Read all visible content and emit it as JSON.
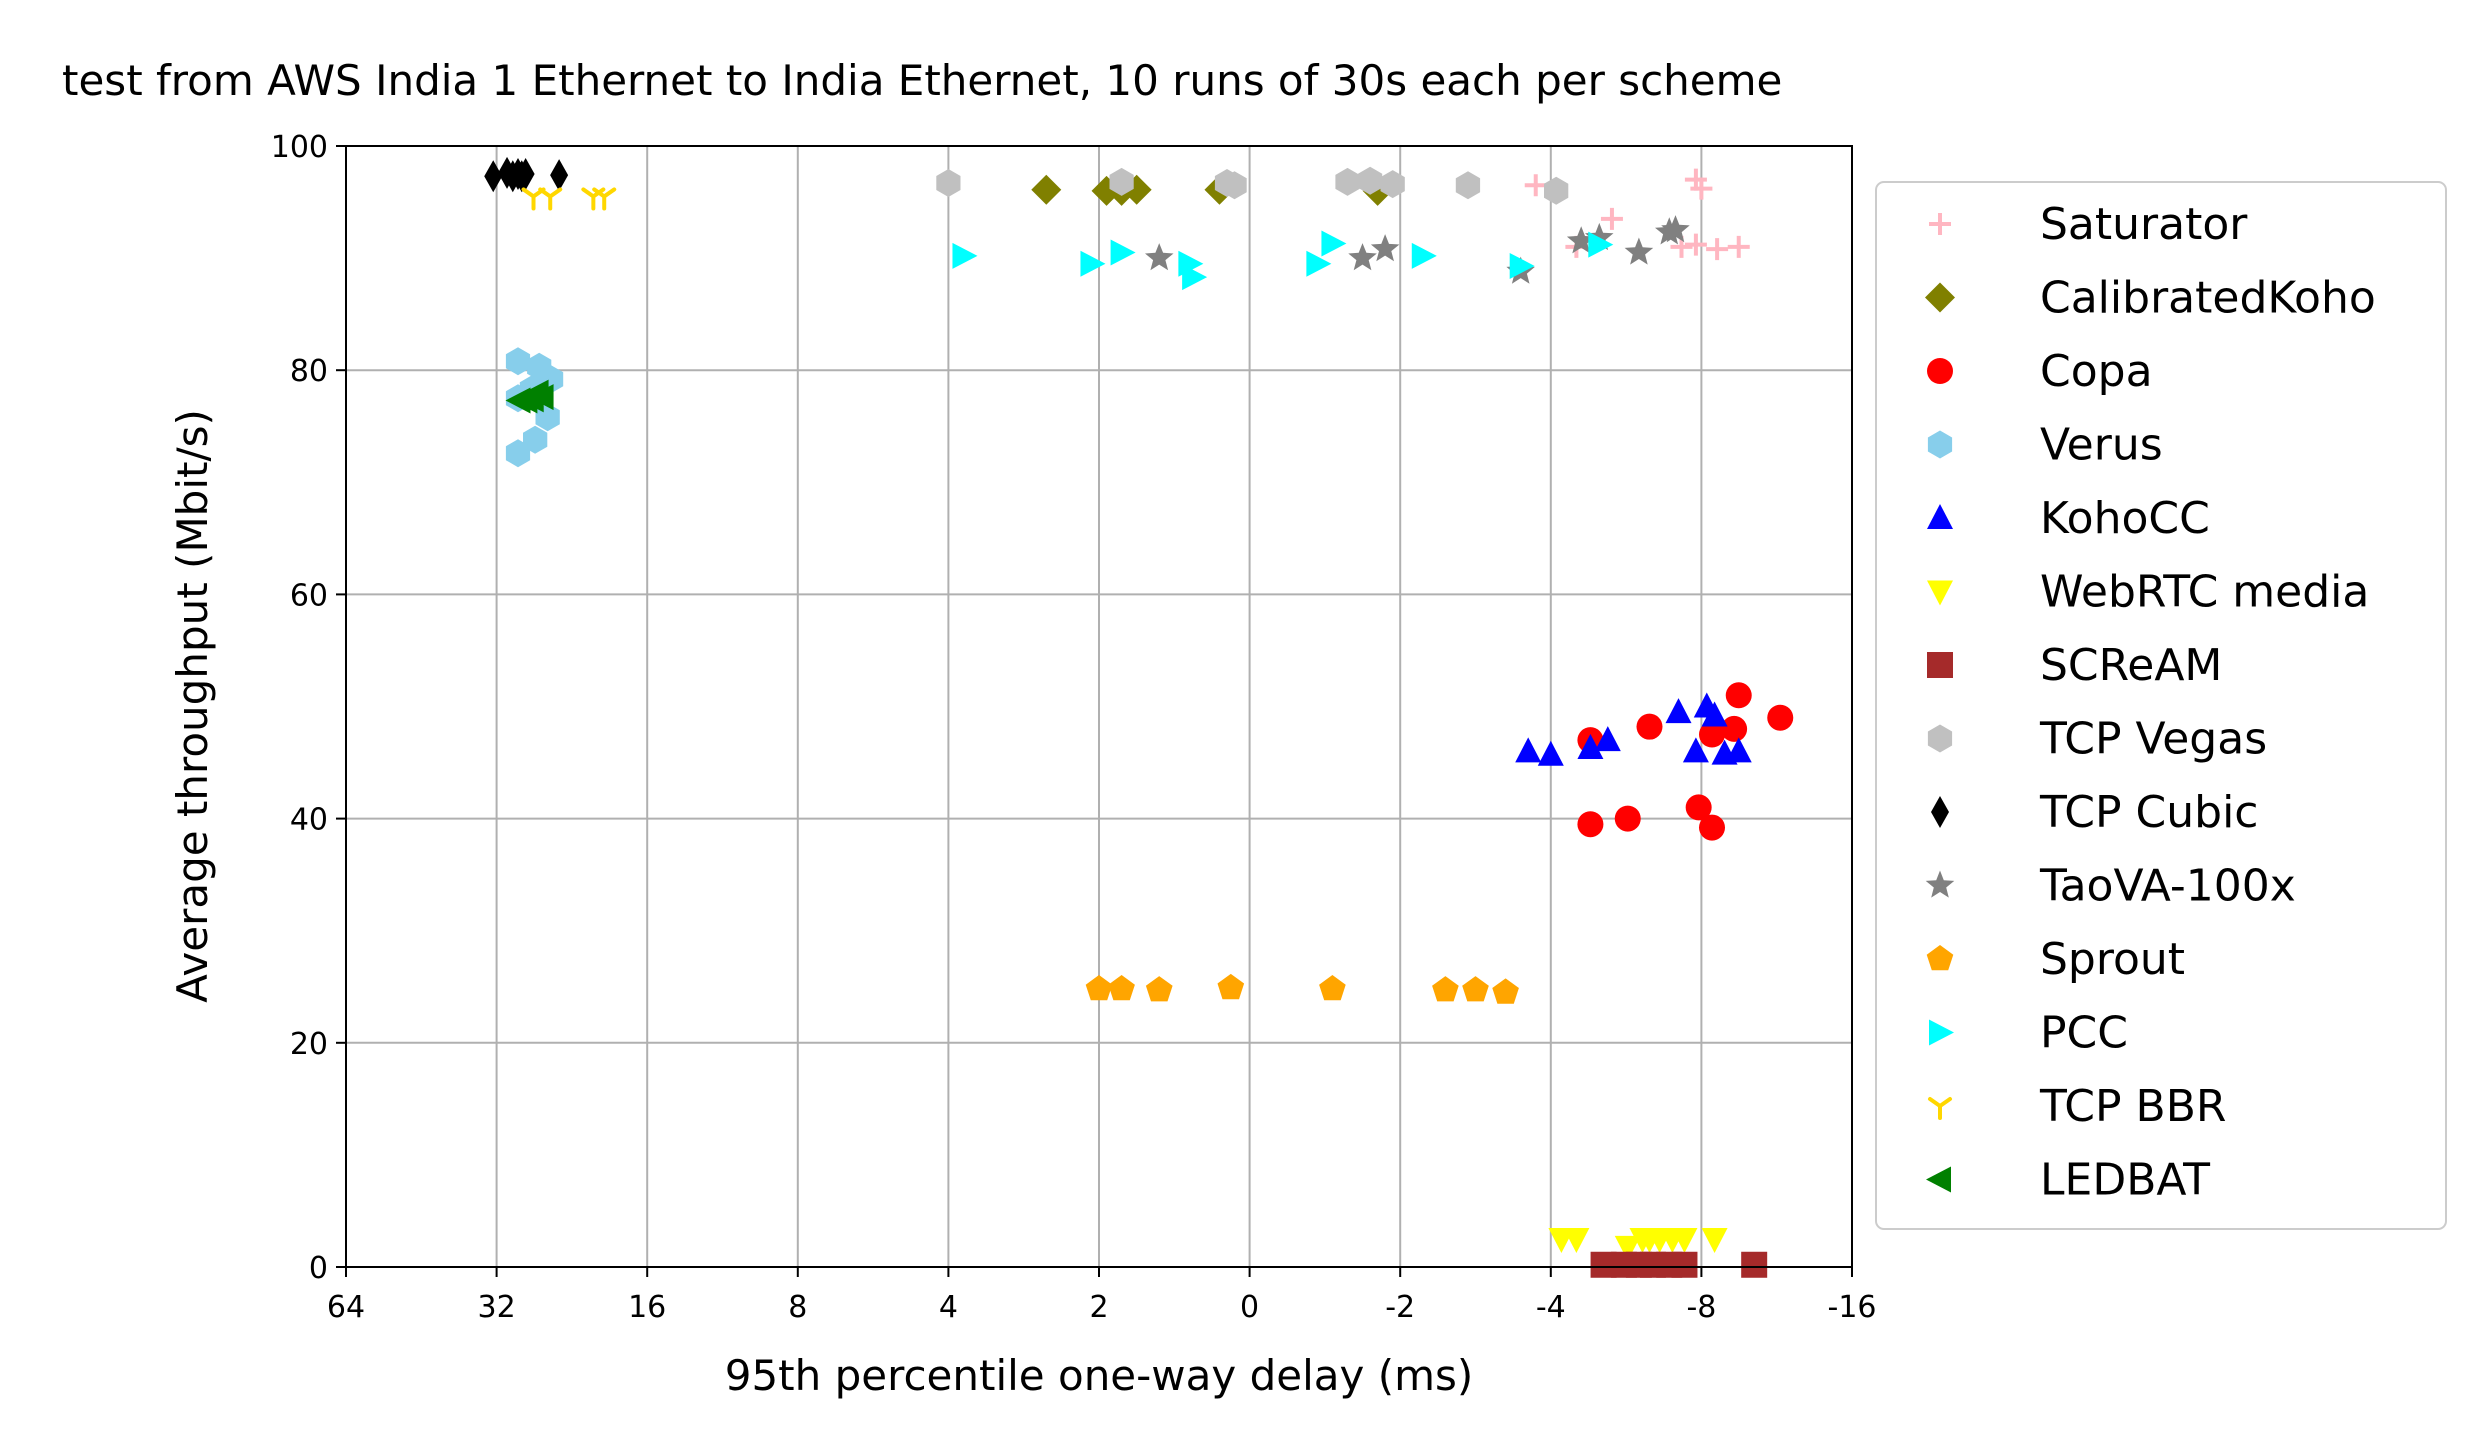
{
  "chart_data": {
    "type": "scatter",
    "title": "test from AWS India 1 Ethernet to India Ethernet, 10 runs of 30s each per scheme",
    "xlabel": "95th percentile one-way delay (ms)",
    "ylabel": "Average throughput (Mbit/s)",
    "x_scale": "symlog (inverted)",
    "x_ticks": [
      64,
      32,
      16,
      8,
      4,
      2,
      0,
      -2,
      -4,
      -8,
      -16
    ],
    "x_tick_labels": [
      "64",
      "32",
      "16",
      "8",
      "4",
      "2",
      "0",
      "-2",
      "-4",
      "-8",
      "-16"
    ],
    "y_ticks": [
      0,
      20,
      40,
      60,
      80,
      100
    ],
    "y_tick_labels": [
      "0",
      "20",
      "40",
      "60",
      "80",
      "100"
    ],
    "ylim": [
      0,
      100
    ],
    "grid": true,
    "legend_position": "right, outside plot",
    "series": [
      {
        "name": "Saturator",
        "marker": "plus",
        "color": "#ffb6c1",
        "points": [
          [
            -3.8,
            96.5
          ],
          [
            -4.5,
            91.0
          ],
          [
            -5.3,
            93.5
          ],
          [
            -7.8,
            97.0
          ],
          [
            -8.0,
            96.2
          ],
          [
            -7.3,
            91.0
          ],
          [
            -7.8,
            91.2
          ],
          [
            -8.6,
            90.8
          ],
          [
            -9.5,
            91.0
          ]
        ]
      },
      {
        "name": "CalibratedKoho",
        "marker": "diamond",
        "color": "#808000",
        "points": [
          [
            2.7,
            96.1
          ],
          [
            1.9,
            96.0
          ],
          [
            1.7,
            96.0
          ],
          [
            1.5,
            96.1
          ],
          [
            0.4,
            96.1
          ],
          [
            -1.7,
            96.0
          ]
        ]
      },
      {
        "name": "Copa",
        "marker": "circle",
        "color": "#ff0000",
        "points": [
          [
            -4.8,
            47.0
          ],
          [
            -6.3,
            48.2
          ],
          [
            -8.4,
            47.5
          ],
          [
            -9.5,
            51.0
          ],
          [
            -9.3,
            48.0
          ],
          [
            -11.5,
            49.0
          ],
          [
            -4.8,
            39.5
          ],
          [
            -5.7,
            40.0
          ],
          [
            -7.9,
            41.0
          ],
          [
            -8.4,
            39.2
          ]
        ]
      },
      {
        "name": "Verus",
        "marker": "hexagon",
        "color": "#87ceeb",
        "points": [
          [
            29.0,
            80.8
          ],
          [
            26.3,
            80.3
          ],
          [
            24.9,
            79.2
          ],
          [
            27.2,
            78.3
          ],
          [
            29.0,
            77.5
          ],
          [
            25.3,
            75.8
          ],
          [
            26.8,
            73.8
          ],
          [
            29.0,
            72.6
          ]
        ]
      },
      {
        "name": "KohoCC",
        "marker": "triangle-up",
        "color": "#0000ff",
        "points": [
          [
            -3.7,
            46.0
          ],
          [
            -4.0,
            45.7
          ],
          [
            -4.8,
            46.3
          ],
          [
            -5.2,
            47.0
          ],
          [
            -7.2,
            49.5
          ],
          [
            -7.8,
            46.0
          ],
          [
            -8.2,
            50.0
          ],
          [
            -8.5,
            49.2
          ],
          [
            -8.9,
            45.8
          ],
          [
            -9.5,
            46.0
          ]
        ]
      },
      {
        "name": "WebRTC media",
        "marker": "triangle-down",
        "color": "#ffff00",
        "points": [
          [
            -4.2,
            2.5
          ],
          [
            -4.5,
            2.5
          ],
          [
            -5.7,
            1.8
          ],
          [
            -6.1,
            2.5
          ],
          [
            -6.3,
            2.5
          ],
          [
            -6.6,
            2.5
          ],
          [
            -7.0,
            2.5
          ],
          [
            -7.4,
            2.5
          ],
          [
            -8.5,
            2.5
          ]
        ]
      },
      {
        "name": "SCReAM",
        "marker": "square",
        "color": "#a52a2a",
        "points": [
          [
            -5.1,
            0.2
          ],
          [
            -5.6,
            0.2
          ],
          [
            -6.0,
            0.2
          ],
          [
            -6.4,
            0.2
          ],
          [
            -6.9,
            0.2
          ],
          [
            -7.4,
            0.2
          ],
          [
            -10.2,
            0.2
          ]
        ]
      },
      {
        "name": "TCP Vegas",
        "marker": "hexagon",
        "color": "#c0c0c0",
        "points": [
          [
            4.0,
            96.7
          ],
          [
            1.7,
            96.8
          ],
          [
            0.3,
            96.7
          ],
          [
            0.2,
            96.5
          ],
          [
            -1.3,
            96.8
          ],
          [
            -1.6,
            96.9
          ],
          [
            -1.9,
            96.6
          ],
          [
            -2.9,
            96.5
          ],
          [
            -4.1,
            96.0
          ]
        ]
      },
      {
        "name": "TCP Cubic",
        "marker": "thin-diamond",
        "color": "#000000",
        "points": [
          [
            32.5,
            97.3
          ],
          [
            30.5,
            97.6
          ],
          [
            29.7,
            97.3
          ],
          [
            29.0,
            97.5
          ],
          [
            28.5,
            97.3
          ],
          [
            28.0,
            97.5
          ],
          [
            24.0,
            97.4
          ]
        ]
      },
      {
        "name": "TaoVA-100x",
        "marker": "star",
        "color": "#808080",
        "points": [
          [
            1.2,
            90.0
          ],
          [
            -1.5,
            90.0
          ],
          [
            -1.8,
            90.8
          ],
          [
            -3.6,
            88.8
          ],
          [
            -4.6,
            91.5
          ],
          [
            -5.0,
            91.8
          ],
          [
            -6.0,
            90.5
          ],
          [
            -6.9,
            92.3
          ],
          [
            -7.1,
            92.5
          ]
        ]
      },
      {
        "name": "Sprout",
        "marker": "pentagon",
        "color": "#ffa500",
        "points": [
          [
            2.0,
            24.8
          ],
          [
            1.7,
            24.8
          ],
          [
            1.2,
            24.7
          ],
          [
            0.25,
            24.9
          ],
          [
            -1.1,
            24.8
          ],
          [
            -2.6,
            24.7
          ],
          [
            -3.0,
            24.7
          ],
          [
            -3.4,
            24.5
          ]
        ]
      },
      {
        "name": "PCC",
        "marker": "triangle-right",
        "color": "#00ffff",
        "points": [
          [
            3.8,
            90.2
          ],
          [
            2.1,
            89.5
          ],
          [
            1.7,
            90.5
          ],
          [
            0.8,
            89.5
          ],
          [
            0.75,
            88.3
          ],
          [
            -0.9,
            89.5
          ],
          [
            -1.1,
            91.3
          ],
          [
            -2.3,
            90.2
          ],
          [
            -3.6,
            89.3
          ],
          [
            -5.0,
            91.2
          ]
        ]
      },
      {
        "name": "TCP BBR",
        "marker": "tri-down",
        "color": "#ffd700",
        "points": [
          [
            27.0,
            95.5
          ],
          [
            25.0,
            95.5
          ],
          [
            20.5,
            95.5
          ],
          [
            19.5,
            95.5
          ]
        ]
      },
      {
        "name": "LEDBAT",
        "marker": "triangle-left",
        "color": "#008000",
        "points": [
          [
            28.8,
            77.3
          ],
          [
            27.9,
            77.3
          ],
          [
            27.1,
            77.4
          ],
          [
            26.5,
            78.0
          ],
          [
            25.9,
            77.6
          ]
        ]
      }
    ]
  }
}
